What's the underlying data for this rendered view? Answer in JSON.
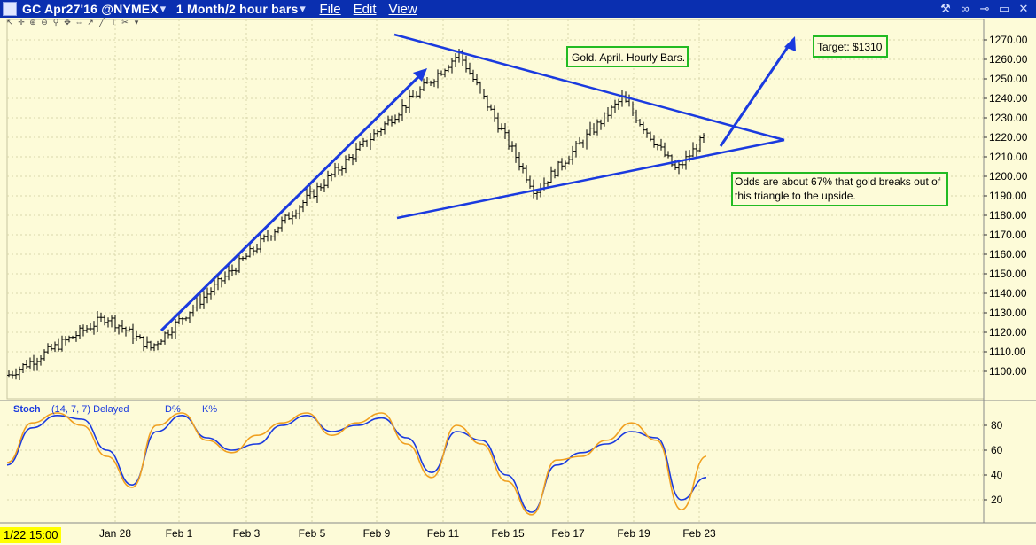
{
  "window": {
    "title": "GC Apr27'16 @NYMEX",
    "timeframe": "1 Month/2 hour bars",
    "menus": [
      "File",
      "Edit",
      "View"
    ]
  },
  "toolbar_icons": [
    "cursor-icon",
    "crosshair-icon",
    "zoom-in-icon",
    "zoom-out-icon",
    "zoom-icon",
    "pan-icon",
    "move-icon",
    "arrow-icon",
    "line-icon",
    "text-icon",
    "delete-icon",
    "menu-icon"
  ],
  "price_axis": {
    "ticks": [
      "1270.00",
      "1260.00",
      "1250.00",
      "1240.00",
      "1230.00",
      "1220.00",
      "1210.00",
      "1200.00",
      "1190.00",
      "1180.00",
      "1170.00",
      "1160.00",
      "1150.00",
      "1140.00",
      "1130.00",
      "1120.00",
      "1110.00",
      "1100.00"
    ]
  },
  "stoch_axis": {
    "ticks": [
      "80",
      "60",
      "40",
      "20"
    ]
  },
  "time_axis": {
    "start_label": "1/22 15:00",
    "ticks": [
      "Jan 28",
      "Feb 1",
      "Feb 3",
      "Feb 5",
      "Feb 9",
      "Feb 11",
      "Feb 15",
      "Feb 17",
      "Feb 19",
      "Feb 23"
    ]
  },
  "annotations": {
    "title_box": "Gold. April. Hourly Bars.",
    "target_box": "Target: $1310",
    "odds_line1": "Odds are about 67% that gold breaks out of",
    "odds_line2": "this triangle to the upside."
  },
  "stoch_legend": {
    "name": "Stoch",
    "params": "(14, 7, 7) Delayed",
    "d_label": "D%",
    "k_label": "K%"
  },
  "colors": {
    "background": "#fdfbd8",
    "titlebar": "#0a2fb0",
    "trendlines": "#1a3adf",
    "annotation_border": "#22bb22",
    "d_line": "#1a3adf",
    "k_line": "#f0a020",
    "date_highlight": "#ffff00"
  },
  "chart_data": [
    {
      "type": "ohlc",
      "symbol": "GC Apr27'16 @NYMEX",
      "bar_interval": "2 hour",
      "categories": [
        "1/22 15:00",
        "Jan 28",
        "Feb 1",
        "Feb 3",
        "Feb 5",
        "Feb 9",
        "Feb 11",
        "Feb 15",
        "Feb 17",
        "Feb 19",
        "Feb 23"
      ],
      "close_at_category": [
        1098,
        1110,
        1117,
        1127,
        1158,
        1192,
        1253,
        1198,
        1207,
        1238,
        1220
      ],
      "swing_points": [
        {
          "label": "low",
          "value": 1098
        },
        {
          "label": "Jan 28 area",
          "value": 1128
        },
        {
          "label": "Feb 1 low",
          "value": 1112
        },
        {
          "label": "Feb 11 high",
          "value": 1263
        },
        {
          "label": "Feb 15 low",
          "value": 1192
        },
        {
          "label": "Feb 18 high",
          "value": 1240
        },
        {
          "label": "Feb 22 low",
          "value": 1203
        },
        {
          "label": "last",
          "value": 1220
        }
      ],
      "ylim": [
        1093,
        1275
      ],
      "grid": true
    },
    {
      "type": "line",
      "name": "Stoch",
      "series": [
        {
          "name": "D%",
          "values": [
            48,
            78,
            88,
            85,
            60,
            32,
            75,
            88,
            70,
            60,
            65,
            80,
            88,
            75,
            80,
            86,
            70,
            42,
            75,
            68,
            40,
            10,
            48,
            58,
            65,
            75,
            70,
            20,
            38
          ]
        },
        {
          "name": "K%",
          "values": [
            50,
            82,
            90,
            80,
            55,
            30,
            80,
            90,
            68,
            58,
            72,
            82,
            90,
            72,
            82,
            90,
            65,
            38,
            80,
            65,
            35,
            8,
            52,
            55,
            68,
            82,
            68,
            12,
            55
          ]
        }
      ],
      "ylim": [
        0,
        100
      ],
      "grid": true
    }
  ]
}
